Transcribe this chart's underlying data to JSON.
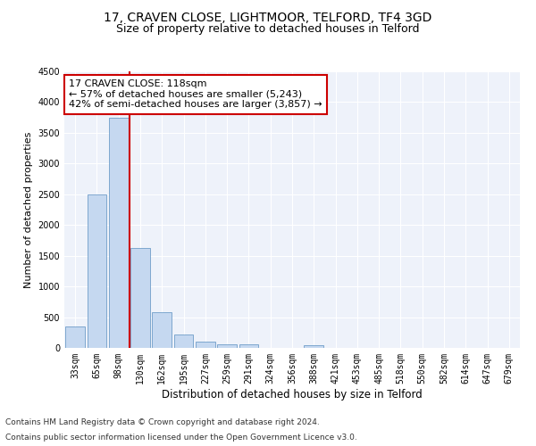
{
  "title1": "17, CRAVEN CLOSE, LIGHTMOOR, TELFORD, TF4 3GD",
  "title2": "Size of property relative to detached houses in Telford",
  "xlabel": "Distribution of detached houses by size in Telford",
  "ylabel": "Number of detached properties",
  "footnote1": "Contains HM Land Registry data © Crown copyright and database right 2024.",
  "footnote2": "Contains public sector information licensed under the Open Government Licence v3.0.",
  "categories": [
    "33sqm",
    "65sqm",
    "98sqm",
    "130sqm",
    "162sqm",
    "195sqm",
    "227sqm",
    "259sqm",
    "291sqm",
    "324sqm",
    "356sqm",
    "388sqm",
    "421sqm",
    "453sqm",
    "485sqm",
    "518sqm",
    "550sqm",
    "582sqm",
    "614sqm",
    "647sqm",
    "679sqm"
  ],
  "values": [
    350,
    2500,
    3750,
    1630,
    580,
    220,
    100,
    60,
    60,
    0,
    0,
    50,
    0,
    0,
    0,
    0,
    0,
    0,
    0,
    0,
    0
  ],
  "bar_color": "#c5d8f0",
  "bar_edge_color": "#5a8fc0",
  "vline_color": "#cc0000",
  "annotation_text": "17 CRAVEN CLOSE: 118sqm\n← 57% of detached houses are smaller (5,243)\n42% of semi-detached houses are larger (3,857) →",
  "annotation_box_facecolor": "white",
  "annotation_box_edgecolor": "#cc0000",
  "ylim": [
    0,
    4500
  ],
  "yticks": [
    0,
    500,
    1000,
    1500,
    2000,
    2500,
    3000,
    3500,
    4000,
    4500
  ],
  "bg_color": "#eef2fa",
  "grid_color": "white",
  "title1_fontsize": 10,
  "title2_fontsize": 9,
  "xlabel_fontsize": 8.5,
  "ylabel_fontsize": 8,
  "tick_fontsize": 7,
  "annotation_fontsize": 8,
  "footnote_fontsize": 6.5
}
